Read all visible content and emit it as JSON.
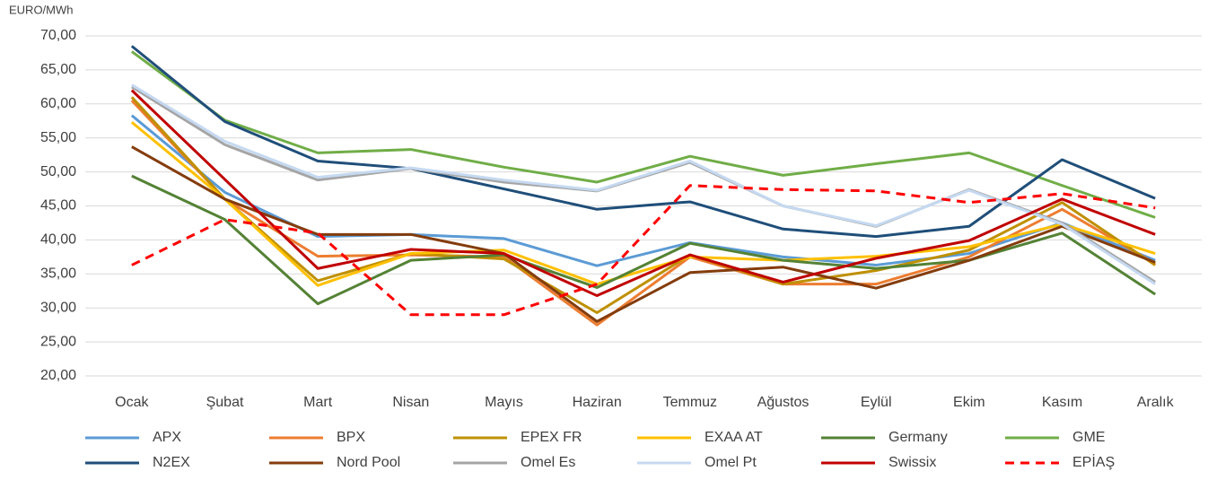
{
  "chart_data": {
    "type": "line",
    "y_label": "EURO/MWh",
    "categories": [
      "Ocak",
      "Şubat",
      "Mart",
      "Nisan",
      "Mayıs",
      "Haziran",
      "Temmuz",
      "Ağustos",
      "Eylül",
      "Ekim",
      "Kasım",
      "Aralık"
    ],
    "ylim": [
      20,
      70
    ],
    "yticks": [
      {
        "value": 20,
        "label": "20,00"
      },
      {
        "value": 25,
        "label": "25,00"
      },
      {
        "value": 30,
        "label": "30,00"
      },
      {
        "value": 35,
        "label": "35,00"
      },
      {
        "value": 40,
        "label": "40,00"
      },
      {
        "value": 45,
        "label": "45,00"
      },
      {
        "value": 50,
        "label": "50,00"
      },
      {
        "value": 55,
        "label": "55,00"
      },
      {
        "value": 60,
        "label": "60,00"
      },
      {
        "value": 65,
        "label": "65,00"
      },
      {
        "value": 70,
        "label": "70,00"
      }
    ],
    "grid": true,
    "legend": "bottom",
    "series": [
      {
        "name": "APX",
        "color": "#5b9bd5",
        "line_style": "solid",
        "values": [
          58.3,
          47,
          40.5,
          40.8,
          40.2,
          36.2,
          39.6,
          37.5,
          36.3,
          38,
          42.5,
          37
        ]
      },
      {
        "name": "BPX",
        "color": "#ed7d31",
        "line_style": "solid",
        "values": [
          60.5,
          46,
          37.6,
          37.8,
          37.5,
          27.5,
          37.5,
          33.5,
          33.5,
          37.5,
          44.5,
          36.5
        ]
      },
      {
        "name": "EPEX FR",
        "color": "#bf9000",
        "line_style": "solid",
        "values": [
          61,
          46,
          34,
          38,
          37.2,
          29.3,
          37.8,
          33.5,
          35.5,
          38.5,
          45.5,
          36.3
        ]
      },
      {
        "name": "EXAA AT",
        "color": "#ffc000",
        "line_style": "solid",
        "values": [
          57.3,
          46,
          33.3,
          38,
          38.5,
          33.5,
          37.5,
          37,
          37.6,
          39,
          42.3,
          38
        ]
      },
      {
        "name": "Germany",
        "color": "#548235",
        "line_style": "solid",
        "values": [
          49.4,
          43,
          30.6,
          37,
          37.8,
          33,
          39.5,
          37,
          35.8,
          37,
          41,
          32
        ]
      },
      {
        "name": "GME",
        "color": "#70ad47",
        "line_style": "solid",
        "values": [
          67.7,
          57.6,
          52.8,
          53.3,
          50.7,
          48.5,
          52.3,
          49.5,
          51.2,
          52.8,
          48,
          43.3
        ]
      },
      {
        "name": "N2EX",
        "color": "#1f4e79",
        "line_style": "solid",
        "values": [
          68.5,
          57.4,
          51.6,
          50.5,
          47.5,
          44.5,
          45.6,
          41.6,
          40.5,
          42,
          51.8,
          46.1
        ]
      },
      {
        "name": "Nord Pool",
        "color": "#843c0c",
        "line_style": "solid",
        "values": [
          53.7,
          46,
          40.8,
          40.8,
          38,
          28,
          35.2,
          36,
          32.9,
          37,
          42,
          36.7
        ]
      },
      {
        "name": "Omel Es",
        "color": "#a5a5a5",
        "line_style": "solid",
        "values": [
          62.5,
          54,
          48.8,
          50.5,
          48.5,
          47.2,
          51.4,
          45,
          42,
          47.4,
          42.5,
          33.8
        ]
      },
      {
        "name": "Omel Pt",
        "color": "#c5d9f1",
        "line_style": "solid",
        "values": [
          62.8,
          54.5,
          49.2,
          50.6,
          48.8,
          47.3,
          51.6,
          45,
          42.1,
          47.3,
          42.3,
          33.5
        ]
      },
      {
        "name": "Swissix",
        "color": "#c00000",
        "line_style": "solid",
        "values": [
          62,
          48.9,
          35.8,
          38.6,
          38,
          31.8,
          37.8,
          33.8,
          37.3,
          39.9,
          46,
          40.8
        ]
      },
      {
        "name": "EPİAŞ",
        "color": "#ff0000",
        "line_style": "dashed",
        "values": [
          36.3,
          43,
          41,
          29,
          29,
          33.5,
          48,
          47.4,
          47.2,
          45.5,
          46.8,
          44.7
        ]
      }
    ]
  }
}
